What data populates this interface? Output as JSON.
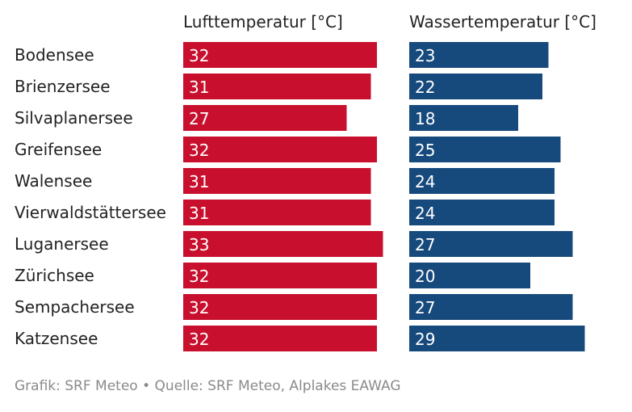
{
  "chart_data": {
    "type": "bar",
    "orientation": "horizontal",
    "categories": [
      "Bodensee",
      "Brienzersee",
      "Silvaplanersee",
      "Greifensee",
      "Walensee",
      "Vierwaldstättersee",
      "Luganersee",
      "Zürichsee",
      "Sempachersee",
      "Katzensee"
    ],
    "series": [
      {
        "name": "Lufttemperatur [°C]",
        "color": "#c8102e",
        "values": [
          32,
          31,
          27,
          32,
          31,
          31,
          33,
          32,
          32,
          32
        ]
      },
      {
        "name": "Wassertemperatur [°C]",
        "color": "#174a7c",
        "values": [
          23,
          22,
          18,
          25,
          24,
          24,
          27,
          20,
          27,
          29
        ]
      }
    ],
    "grid": false,
    "legend": "none"
  },
  "source": "Grafik: SRF Meteo • Quelle: SRF Meteo, Alplakes EAWAG"
}
